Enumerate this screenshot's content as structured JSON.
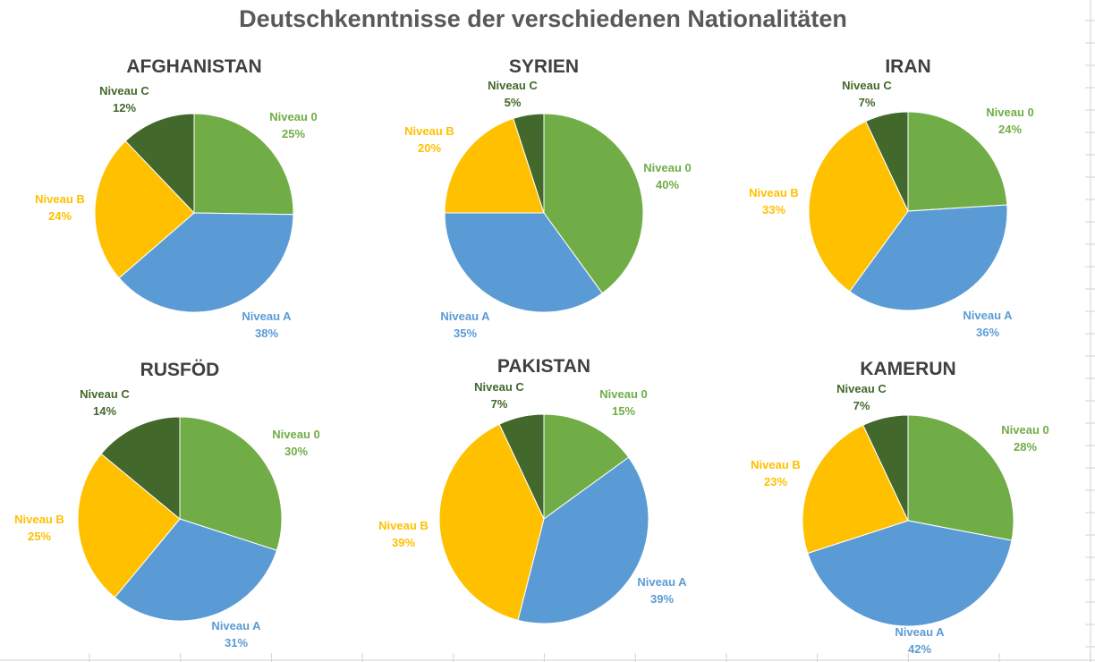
{
  "chart_data": {
    "type": "pie",
    "title": "Deutschkenntnisse der verschiedenen Nationalitäten",
    "categories": [
      "Niveau 0",
      "Niveau A",
      "Niveau B",
      "Niveau C"
    ],
    "colors": {
      "Niveau 0": "#70AD47",
      "Niveau A": "#5B9BD5",
      "Niveau B": "#FFC000",
      "Niveau C": "#43682B"
    },
    "start_angle": "top, clockwise",
    "charts": [
      {
        "title": "AFGHANISTAN",
        "values": [
          25,
          38,
          24,
          12
        ],
        "labels": [
          "25%",
          "38%",
          "24%",
          "12%"
        ]
      },
      {
        "title": "SYRIEN",
        "values": [
          40,
          35,
          20,
          5
        ],
        "labels": [
          "40%",
          "35%",
          "20%",
          "5%"
        ]
      },
      {
        "title": "IRAN",
        "values": [
          24,
          36,
          33,
          7
        ],
        "labels": [
          "24%",
          "36%",
          "33%",
          "7%"
        ]
      },
      {
        "title": "RUSFÖD",
        "values": [
          30,
          31,
          25,
          14
        ],
        "labels": [
          "30%",
          "31%",
          "25%",
          "14%"
        ]
      },
      {
        "title": "PAKISTAN",
        "values": [
          15,
          39,
          39,
          7
        ],
        "labels": [
          "15%",
          "39%",
          "39%",
          "7%"
        ]
      },
      {
        "title": "KAMERUN",
        "values": [
          28,
          42,
          23,
          7
        ],
        "labels": [
          "28%",
          "42%",
          "23%",
          "7%"
        ]
      }
    ]
  }
}
